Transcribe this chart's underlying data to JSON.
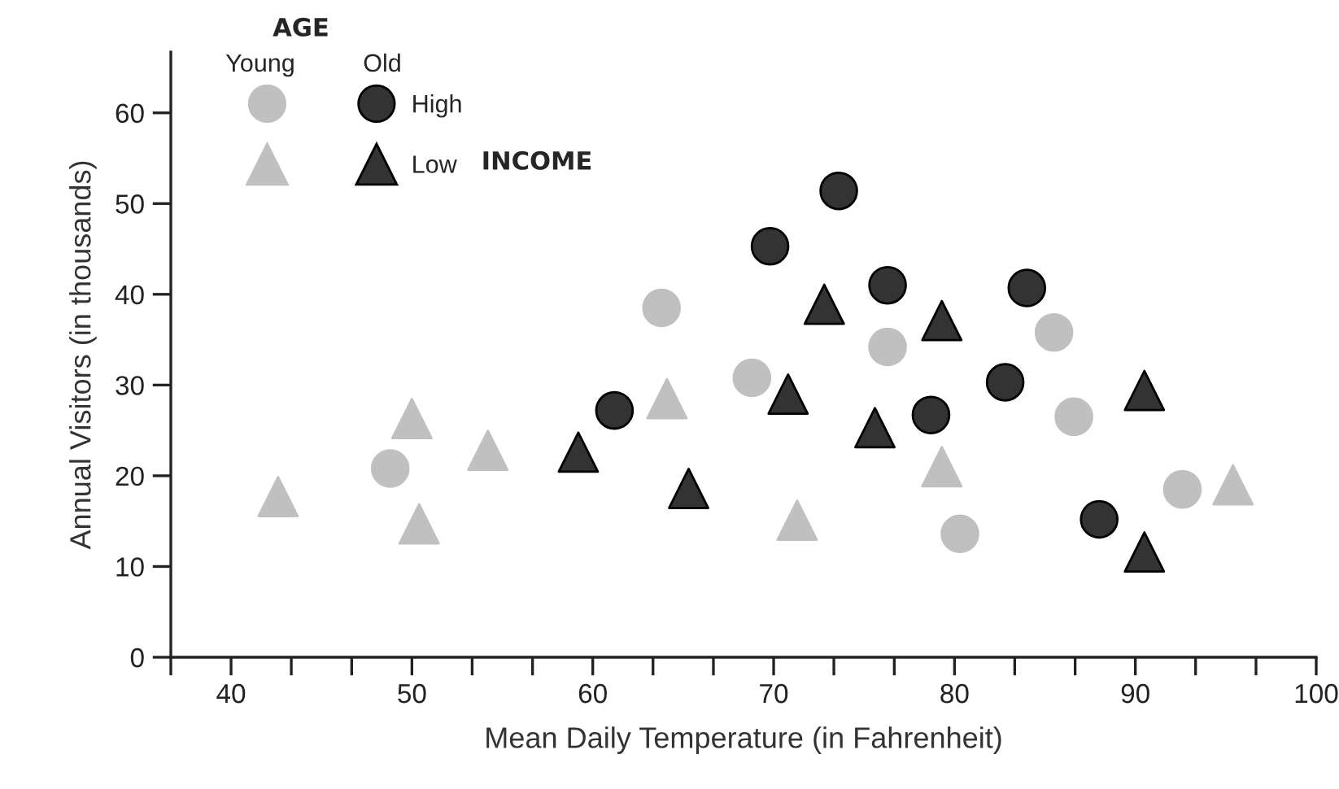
{
  "chart_data": {
    "type": "scatter",
    "xlabel": "Mean Daily Temperature (in Fahrenheit)",
    "ylabel": "Annual Visitors (in thousands)",
    "xlim": [
      36.67,
      100
    ],
    "xticks": [
      {
        "value": 36.67,
        "label": null
      },
      40,
      {
        "value": 43.33,
        "label": null
      },
      {
        "value": 46.67,
        "label": null
      },
      50,
      {
        "value": 53.33,
        "label": null
      },
      {
        "value": 56.67,
        "label": null
      },
      60,
      {
        "value": 63.33,
        "label": null
      },
      {
        "value": 66.67,
        "label": null
      },
      70,
      {
        "value": 73.33,
        "label": null
      },
      {
        "value": 76.67,
        "label": null
      },
      80,
      {
        "value": 83.33,
        "label": null
      },
      {
        "value": 86.67,
        "label": null
      },
      90,
      {
        "value": 93.33,
        "label": null
      },
      {
        "value": 96.67,
        "label": null
      },
      100
    ],
    "ylim": [
      0,
      66.7
    ],
    "yticks": [
      0,
      10,
      20,
      30,
      40,
      50,
      60
    ],
    "grid": false,
    "legend": "top left",
    "annotations": [
      "AGE",
      "Young",
      "Old",
      "INCOME"
    ],
    "series": [
      {
        "color": "#c0c0c0",
        "marker": "circle",
        "x": [
          48.8,
          63.8,
          68.8,
          76.3,
          85.5,
          86.6,
          92.6,
          80.3
        ],
        "values": [
          20.8,
          38.5,
          30.8,
          34.2,
          35.8,
          26.5,
          18.5,
          13.6
        ]
      },
      {
        "name": "High",
        "color": "#333333",
        "marker": "circle",
        "x": [
          61.2,
          69.8,
          73.6,
          76.3,
          84.0,
          82.8,
          78.7,
          88.0
        ],
        "values": [
          27.2,
          45.3,
          51.4,
          41.0,
          40.7,
          30.3,
          26.7,
          15.2
        ]
      },
      {
        "color": "#c0c0c0",
        "marker": "triangle",
        "x": [
          42.6,
          50.0,
          50.4,
          54.2,
          64.1,
          79.3,
          95.4,
          71.3
        ],
        "values": [
          17.7,
          26.3,
          14.7,
          22.8,
          28.5,
          21.0,
          19.0,
          15.1
        ]
      },
      {
        "name": "Low",
        "color": "#333333",
        "marker": "triangle",
        "x": [
          59.2,
          65.3,
          72.8,
          79.3,
          70.8,
          90.5,
          75.6,
          90.5
        ],
        "values": [
          22.6,
          18.6,
          38.9,
          37.1,
          29.0,
          29.4,
          25.3,
          11.6
        ]
      }
    ]
  }
}
